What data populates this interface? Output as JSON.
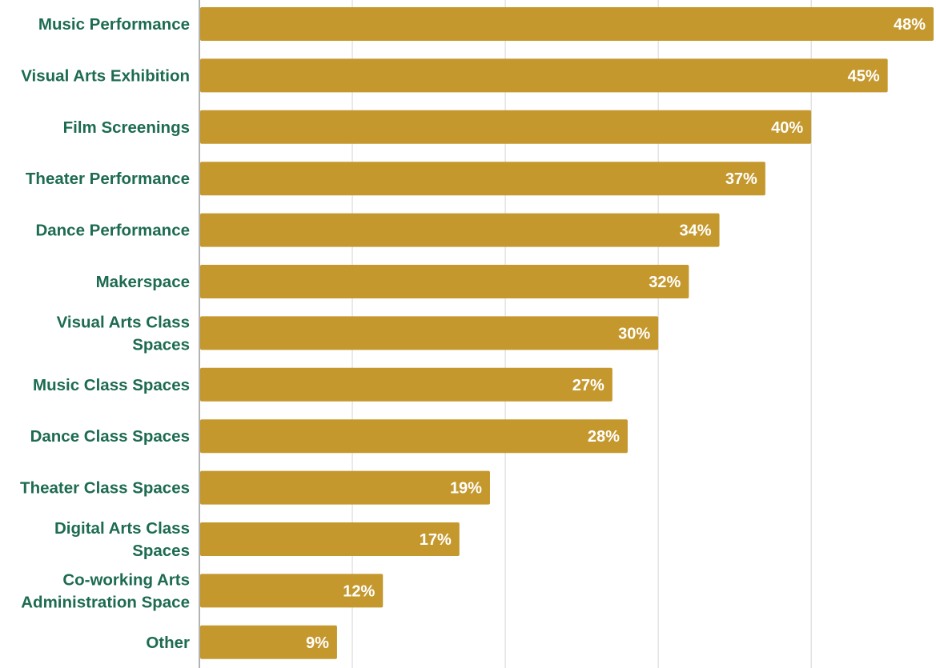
{
  "colors": {
    "bar": "#c5982e",
    "category_text": "#1d6b50",
    "value_text": "#ffffff",
    "grid": "#d4d4d4",
    "axis": "#9a9a9a"
  },
  "chart_data": {
    "type": "bar",
    "orientation": "horizontal",
    "categories": [
      [
        "Music Performance"
      ],
      [
        "Visual Arts Exhibition"
      ],
      [
        "Film Screenings"
      ],
      [
        "Theater Performance"
      ],
      [
        "Dance Performance"
      ],
      [
        "Makerspace"
      ],
      [
        "Visual Arts Class",
        "Spaces"
      ],
      [
        "Music Class Spaces"
      ],
      [
        "Dance Class  Spaces"
      ],
      [
        "Theater Class Spaces"
      ],
      [
        "Digital Arts Class",
        "Spaces"
      ],
      [
        "Co-working Arts",
        "Administration Space"
      ],
      [
        "Other"
      ]
    ],
    "values": [
      48,
      45,
      40,
      37,
      34,
      32,
      30,
      27,
      28,
      19,
      17,
      12,
      9
    ],
    "value_labels": [
      "48%",
      "45%",
      "40%",
      "37%",
      "34%",
      "32%",
      "30%",
      "27%",
      "28%",
      "19%",
      "17%",
      "12%",
      "9%"
    ],
    "unit": "%",
    "xlim": [
      0,
      48
    ],
    "gridlines": [
      0,
      10,
      20,
      30,
      40
    ],
    "grid": true,
    "title": "",
    "xlabel": "",
    "ylabel": ""
  }
}
